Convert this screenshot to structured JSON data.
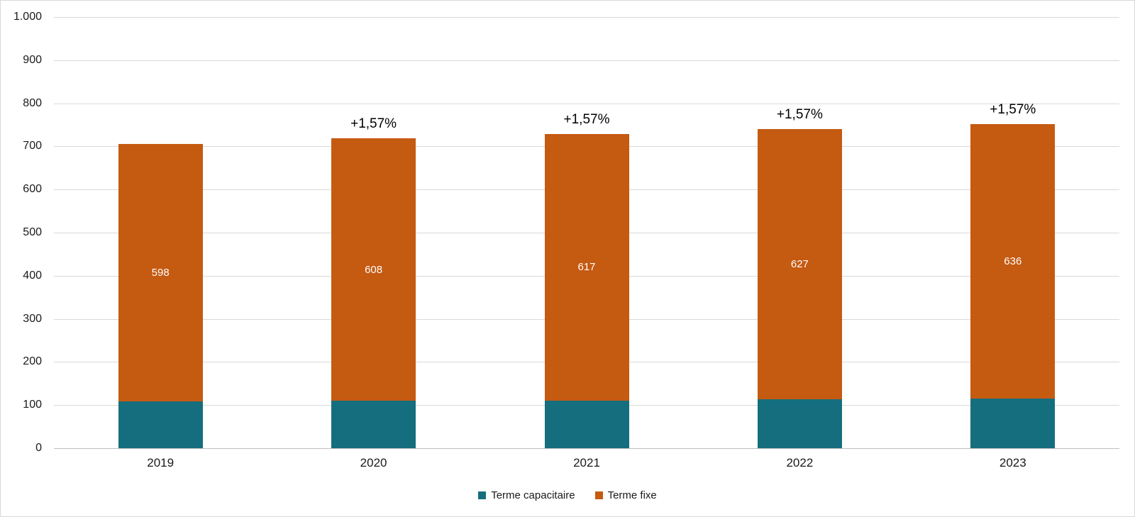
{
  "chart_data": {
    "type": "bar",
    "variant": "stacked-column",
    "title": "",
    "categories": [
      "2019",
      "2020",
      "2021",
      "2022",
      "2023"
    ],
    "series": [
      {
        "name": "Terme capacitaire",
        "color": "#156e7d",
        "values": [
          108,
          110,
          111,
          113,
          115
        ]
      },
      {
        "name": "Terme fixe",
        "color": "#c55a11",
        "values": [
          598,
          608,
          617,
          627,
          636
        ],
        "data_labels": [
          "598",
          "608",
          "617",
          "627",
          "636"
        ],
        "data_label_color": "#ffffff"
      }
    ],
    "annotations": [
      "",
      "+1,57%",
      "+1,57%",
      "+1,57%",
      "+1,57%"
    ],
    "ylim": [
      0,
      1000
    ],
    "y_ticks": [
      {
        "value": 1000,
        "label": "1.000"
      },
      {
        "value": 900,
        "label": "900"
      },
      {
        "value": 800,
        "label": "800"
      },
      {
        "value": 700,
        "label": "700"
      },
      {
        "value": 600,
        "label": "600"
      },
      {
        "value": 500,
        "label": "500"
      },
      {
        "value": 400,
        "label": "400"
      },
      {
        "value": 300,
        "label": "300"
      },
      {
        "value": 200,
        "label": "200"
      },
      {
        "value": 100,
        "label": "100"
      },
      {
        "value": 0,
        "label": "0"
      }
    ],
    "grid": "horizontal",
    "legend_position": "bottom",
    "colors": {
      "gridline": "#d9d9d9",
      "axis_line": "#bfbfbf",
      "tick_text": "#1a1a1a",
      "annotation_text": "#000000",
      "background": "#ffffff"
    }
  }
}
